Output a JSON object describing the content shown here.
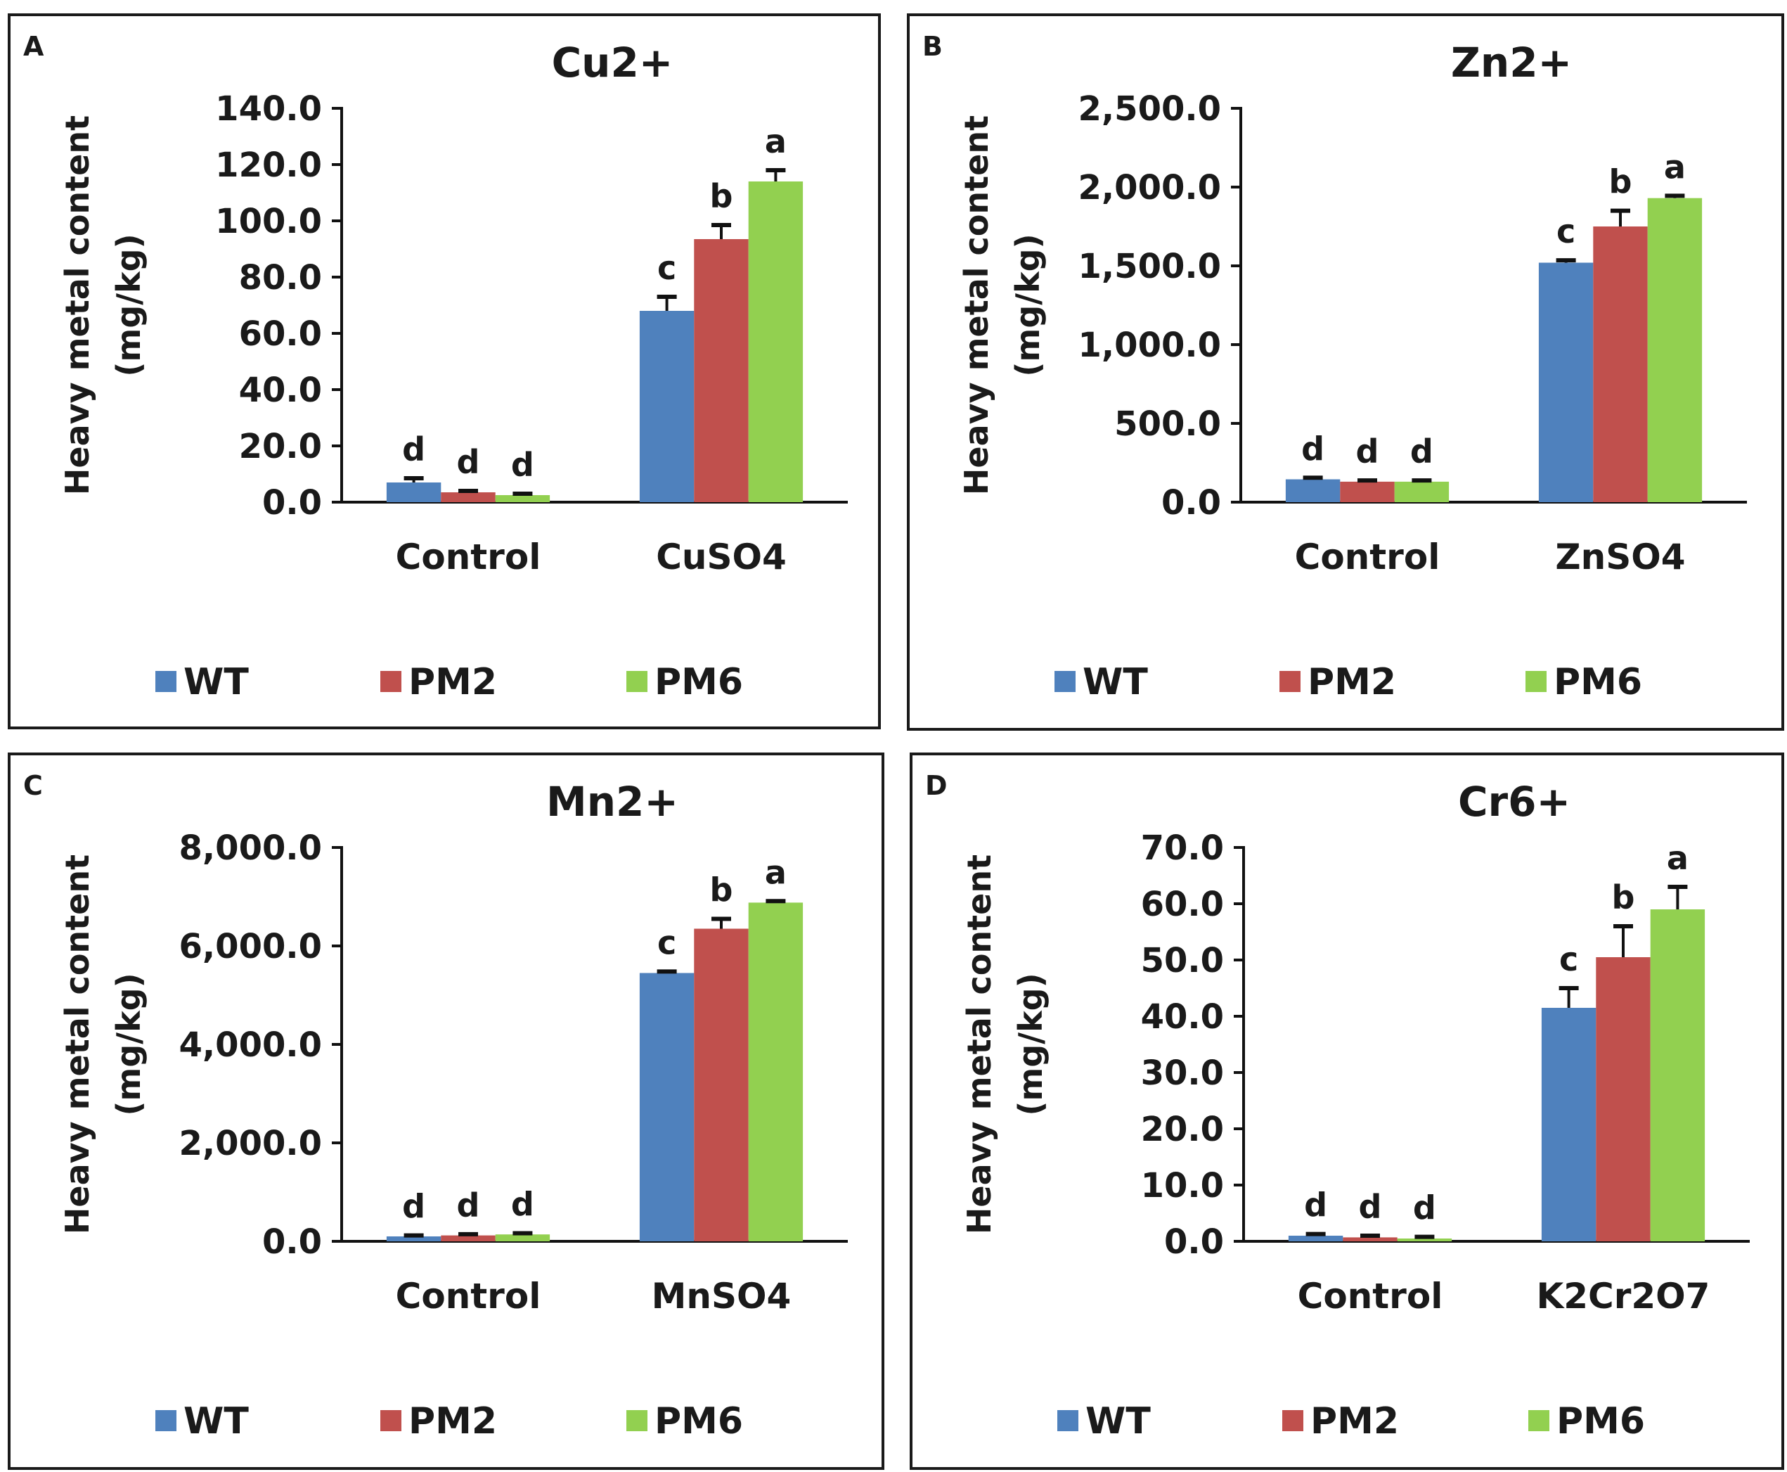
{
  "colors": {
    "WT": "#4F81BD",
    "PM2": "#C0504D",
    "PM6": "#92D050"
  },
  "chart_data": [
    {
      "panel": "A",
      "type": "bar",
      "title": "Cu2+",
      "ylabel": [
        "Heavy metal content",
        "(mg/kg)"
      ],
      "categories": [
        "Control",
        "CuSO4"
      ],
      "ylim": [
        0,
        140
      ],
      "yticks": [
        0,
        20,
        40,
        60,
        80,
        100,
        120,
        140
      ],
      "tick_labels": [
        "0.0",
        "20.0",
        "40.0",
        "60.0",
        "80.0",
        "100.0",
        "120.0",
        "140.0"
      ],
      "series": [
        {
          "name": "WT",
          "values": [
            7.0,
            68.0
          ],
          "errors": [
            1.5,
            5.0
          ],
          "letters": [
            "d",
            "c"
          ]
        },
        {
          "name": "PM2",
          "values": [
            3.5,
            93.5
          ],
          "errors": [
            0.5,
            5.0
          ],
          "letters": [
            "d",
            "b"
          ]
        },
        {
          "name": "PM6",
          "values": [
            2.5,
            114.0
          ],
          "errors": [
            0.5,
            4.0
          ],
          "letters": [
            "d",
            "a"
          ]
        }
      ],
      "legend": "bottom"
    },
    {
      "panel": "B",
      "type": "bar",
      "title": "Zn2+",
      "ylabel": [
        "Heavy metal content",
        "(mg/kg)"
      ],
      "categories": [
        "Control",
        "ZnSO4"
      ],
      "ylim": [
        0,
        2500
      ],
      "yticks": [
        0,
        500,
        1000,
        1500,
        2000,
        2500
      ],
      "tick_labels": [
        "0.0",
        "500.0",
        "1,000.0",
        "1,500.0",
        "2,000.0",
        "2,500.0"
      ],
      "series": [
        {
          "name": "WT",
          "values": [
            145,
            1520
          ],
          "errors": [
            10,
            15
          ],
          "letters": [
            "d",
            "c"
          ]
        },
        {
          "name": "PM2",
          "values": [
            130,
            1750
          ],
          "errors": [
            8,
            100
          ],
          "letters": [
            "d",
            "b"
          ]
        },
        {
          "name": "PM6",
          "values": [
            130,
            1930
          ],
          "errors": [
            8,
            15
          ],
          "letters": [
            "d",
            "a"
          ]
        }
      ],
      "legend": "bottom"
    },
    {
      "panel": "C",
      "type": "bar",
      "title": "Mn2+",
      "ylabel": [
        "Heavy metal content",
        "(mg/kg)"
      ],
      "categories": [
        "Control",
        "MnSO4"
      ],
      "ylim": [
        0,
        8000
      ],
      "yticks": [
        0,
        2000,
        4000,
        6000,
        8000
      ],
      "tick_labels": [
        "0.0",
        "2,000.0",
        "4,000.0",
        "6,000.0",
        "8,000.0"
      ],
      "series": [
        {
          "name": "WT",
          "values": [
            100,
            5450
          ],
          "errors": [
            20,
            30
          ],
          "letters": [
            "d",
            "c"
          ]
        },
        {
          "name": "PM2",
          "values": [
            120,
            6350
          ],
          "errors": [
            25,
            200
          ],
          "letters": [
            "d",
            "b"
          ]
        },
        {
          "name": "PM6",
          "values": [
            140,
            6880
          ],
          "errors": [
            25,
            30
          ],
          "letters": [
            "d",
            "a"
          ]
        }
      ],
      "legend": "bottom"
    },
    {
      "panel": "D",
      "type": "bar",
      "title": "Cr6+",
      "ylabel": [
        "Heavy metal content",
        "(mg/kg)"
      ],
      "categories": [
        "Control",
        "K2Cr2O7"
      ],
      "ylim": [
        0,
        70
      ],
      "yticks": [
        0,
        10,
        20,
        30,
        40,
        50,
        60,
        70
      ],
      "tick_labels": [
        "0.0",
        "10.0",
        "20.0",
        "30.0",
        "40.0",
        "50.0",
        "60.0",
        "70.0"
      ],
      "series": [
        {
          "name": "WT",
          "values": [
            1.0,
            41.5
          ],
          "errors": [
            0.3,
            3.5
          ],
          "letters": [
            "d",
            "c"
          ]
        },
        {
          "name": "PM2",
          "values": [
            0.7,
            50.5
          ],
          "errors": [
            0.3,
            5.5
          ],
          "letters": [
            "d",
            "b"
          ]
        },
        {
          "name": "PM6",
          "values": [
            0.5,
            59.0
          ],
          "errors": [
            0.3,
            4.0
          ],
          "letters": [
            "d",
            "a"
          ]
        }
      ],
      "legend": "bottom"
    }
  ]
}
